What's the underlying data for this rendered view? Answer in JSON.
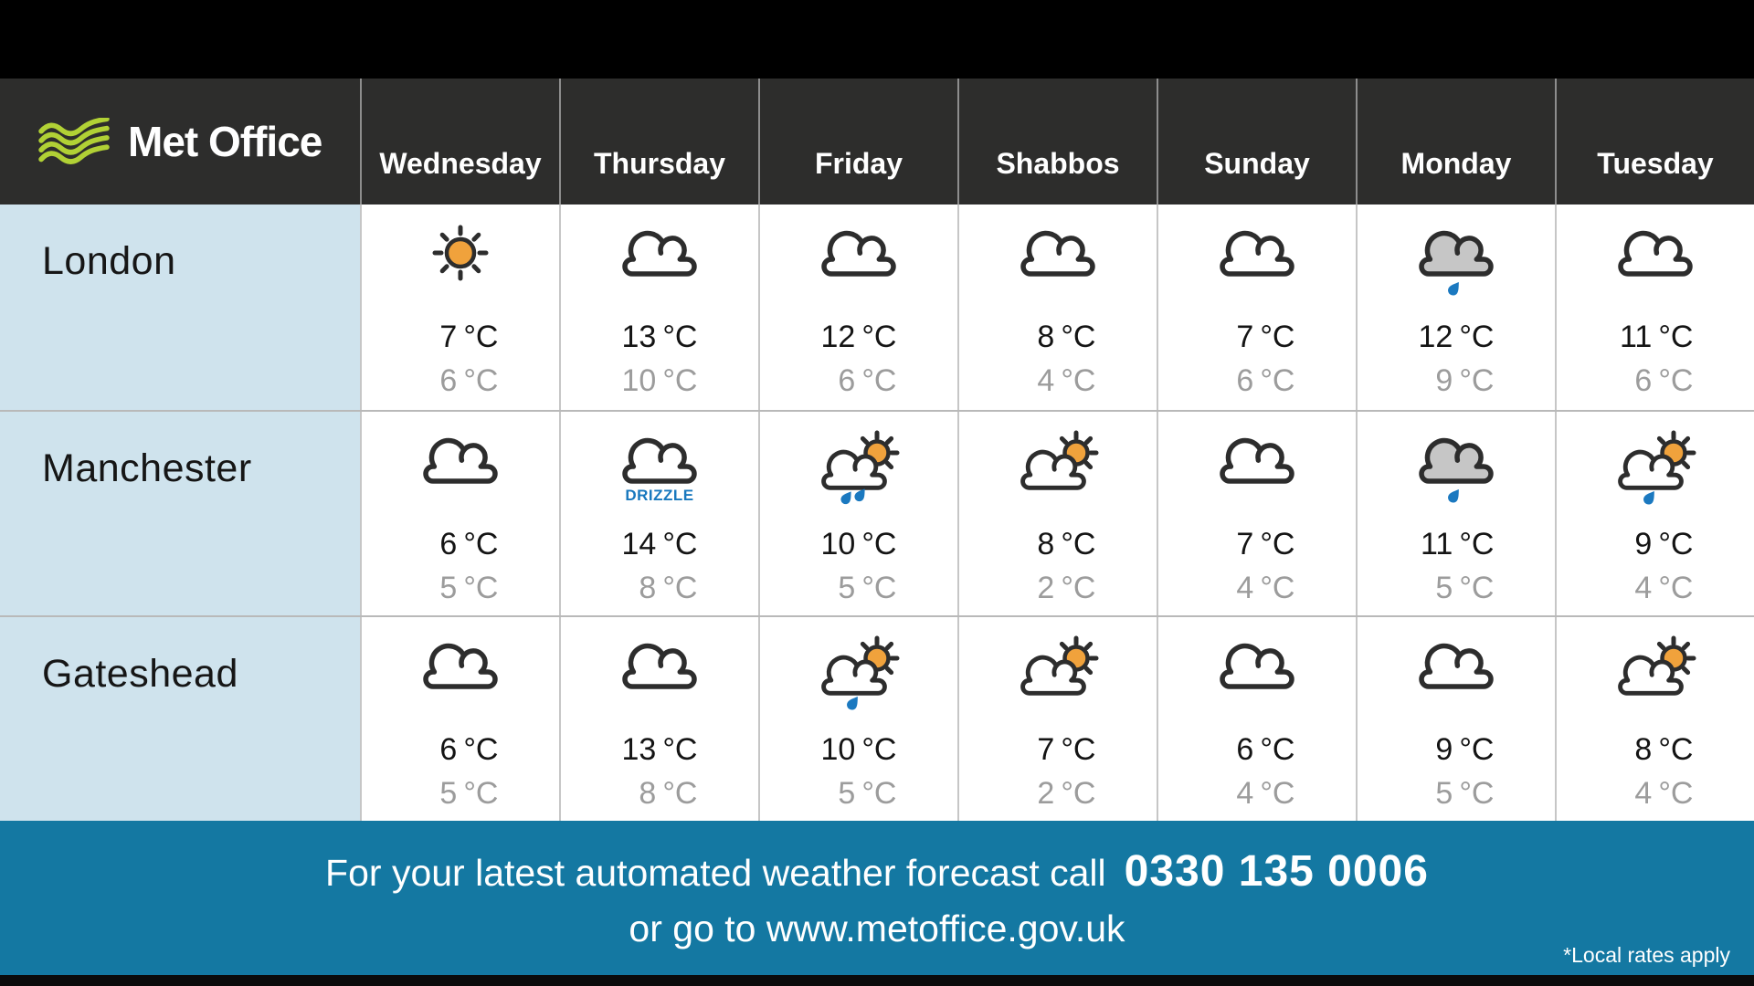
{
  "brand": {
    "logo_text": "Met Office"
  },
  "header": {
    "days": [
      "Wednesday",
      "Thursday",
      "Friday",
      "Shabbos",
      "Sunday",
      "Monday",
      "Tuesday"
    ]
  },
  "units": {
    "temperature": "°C"
  },
  "forecast": {
    "rows": [
      {
        "city": "London",
        "cells": [
          {
            "icon": "sunny",
            "high": "7",
            "low": "6"
          },
          {
            "icon": "cloudy",
            "high": "13",
            "low": "10"
          },
          {
            "icon": "cloudy",
            "high": "12",
            "low": "6"
          },
          {
            "icon": "cloudy",
            "high": "8",
            "low": "4"
          },
          {
            "icon": "cloudy",
            "high": "7",
            "low": "6"
          },
          {
            "icon": "rain-cloud-gray",
            "high": "12",
            "low": "9"
          },
          {
            "icon": "cloudy",
            "high": "11",
            "low": "6"
          }
        ]
      },
      {
        "city": "Manchester",
        "cells": [
          {
            "icon": "cloudy",
            "high": "6",
            "low": "5"
          },
          {
            "icon": "cloud-drizzle-label",
            "label": "DRIZZLE",
            "high": "14",
            "low": "8"
          },
          {
            "icon": "sun-cloud-rain-2",
            "high": "10",
            "low": "5"
          },
          {
            "icon": "sun-cloud",
            "high": "8",
            "low": "2"
          },
          {
            "icon": "cloudy",
            "high": "7",
            "low": "4"
          },
          {
            "icon": "rain-cloud-gray",
            "high": "11",
            "low": "5"
          },
          {
            "icon": "sun-cloud-rain-1",
            "high": "9",
            "low": "4"
          }
        ]
      },
      {
        "city": "Gateshead",
        "cells": [
          {
            "icon": "cloudy",
            "high": "6",
            "low": "5"
          },
          {
            "icon": "cloudy",
            "high": "13",
            "low": "8"
          },
          {
            "icon": "sun-cloud-rain-1",
            "high": "10",
            "low": "5"
          },
          {
            "icon": "sun-cloud",
            "high": "7",
            "low": "2"
          },
          {
            "icon": "cloudy",
            "high": "6",
            "low": "4"
          },
          {
            "icon": "cloudy",
            "high": "9",
            "low": "5"
          },
          {
            "icon": "sun-cloud",
            "high": "8",
            "low": "4"
          }
        ]
      }
    ]
  },
  "footer": {
    "call_text": "For your latest automated weather forecast call",
    "phone": "0330 135 0006",
    "web_text": "or go to www.metoffice.gov.uk",
    "note": "*Local rates apply"
  },
  "colors": {
    "header_bg": "#2d2d2c",
    "city_column_bg": "#cfe3ed",
    "footer_bg": "#1478a2",
    "icon_outline": "#2d2d2d",
    "sun_orange": "#f0a23c",
    "rain_blue": "#1b79c0",
    "gray_cloud_fill": "#c6c6c6",
    "drizzle_text": "#1878be",
    "logo_green": "#b1d135"
  }
}
